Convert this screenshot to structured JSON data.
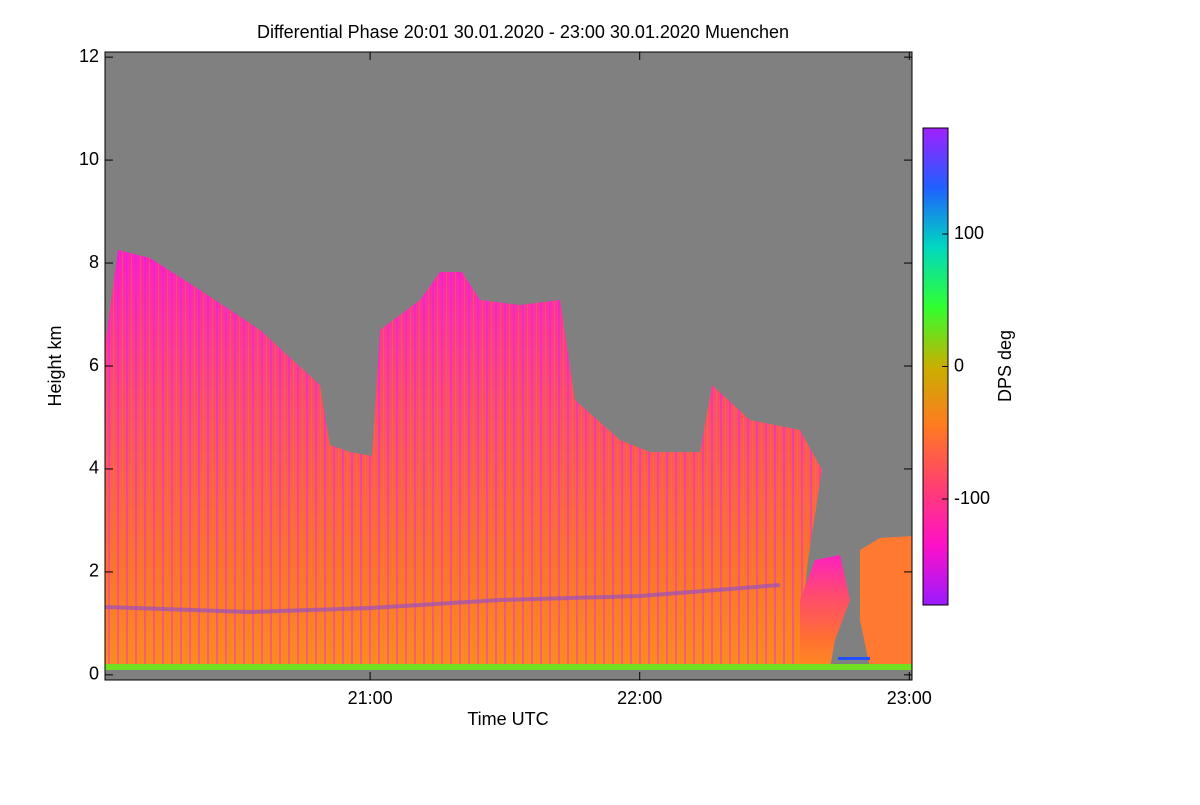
{
  "chart_data": {
    "type": "heatmap",
    "title": "Differential Phase   20:01 30.01.2020 - 23:00 30.01.2020 Muenchen",
    "xlabel": "Time UTC",
    "ylabel": "Height km",
    "xlim": [
      20.0167,
      23.01
    ],
    "xticks": [
      {
        "value": 21,
        "label": "21:00"
      },
      {
        "value": 22,
        "label": "22:00"
      },
      {
        "value": 23,
        "label": "23:00"
      }
    ],
    "ylim": [
      -0.1,
      12.1
    ],
    "yticks": [
      0,
      2,
      4,
      6,
      8,
      10,
      12
    ],
    "colorbar": {
      "label": "DPS deg",
      "zlim": [
        -180,
        180
      ],
      "ticks": [
        -100,
        0,
        100
      ],
      "colorscale": [
        "#9a1aff",
        "#ff10c8",
        "#ff4070",
        "#ff7a20",
        "#c8b000",
        "#30ff30",
        "#00d8c0",
        "#2060ff",
        "#a020ff"
      ]
    },
    "background": "#808080"
  }
}
